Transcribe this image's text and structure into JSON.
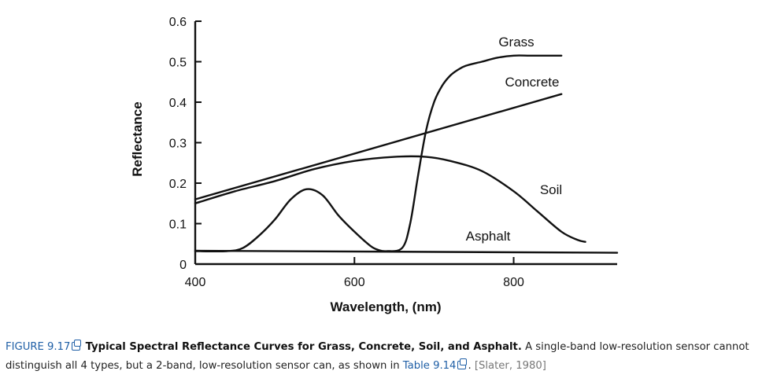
{
  "chart_data": {
    "type": "line",
    "xlabel": "Wavelength, (nm)",
    "ylabel": "Reflectance",
    "xlim": [
      400,
      930
    ],
    "ylim": [
      0,
      0.6
    ],
    "x_ticks": [
      400,
      600,
      800
    ],
    "y_ticks": [
      0,
      0.1,
      0.2,
      0.3,
      0.4,
      0.5,
      0.6
    ],
    "y_tick_labels": [
      "0",
      "0.1",
      "0.2",
      "0.3",
      "0.4",
      "0.5",
      "0.6"
    ],
    "x_tick_labels": [
      "400",
      "600",
      "800"
    ],
    "grid": false,
    "legend": "none (curves labeled directly)",
    "series": [
      {
        "name": "Grass",
        "x": [
          400,
          440,
          460,
          480,
          500,
          520,
          540,
          560,
          580,
          600,
          620,
          630,
          640,
          660,
          670,
          680,
          690,
          700,
          710,
          720,
          730,
          740,
          760,
          780,
          800,
          820,
          840,
          860
        ],
        "y": [
          0.032,
          0.032,
          0.04,
          0.07,
          0.11,
          0.16,
          0.185,
          0.17,
          0.12,
          0.08,
          0.045,
          0.035,
          0.032,
          0.04,
          0.1,
          0.22,
          0.33,
          0.4,
          0.44,
          0.465,
          0.48,
          0.49,
          0.5,
          0.51,
          0.515,
          0.515,
          0.515,
          0.515
        ]
      },
      {
        "name": "Concrete",
        "x": [
          400,
          860
        ],
        "y": [
          0.16,
          0.42
        ]
      },
      {
        "name": "Soil",
        "x": [
          400,
          450,
          500,
          550,
          600,
          650,
          690,
          720,
          760,
          800,
          830,
          860,
          880,
          890
        ],
        "y": [
          0.15,
          0.18,
          0.205,
          0.235,
          0.255,
          0.265,
          0.265,
          0.255,
          0.23,
          0.18,
          0.13,
          0.08,
          0.06,
          0.055
        ]
      },
      {
        "name": "Asphalt",
        "x": [
          400,
          930
        ],
        "y": [
          0.033,
          0.028
        ]
      }
    ]
  },
  "caption": {
    "figure_label": "FIGURE 9.17",
    "title": "Typical Spectral Reflectance Curves for Grass, Concrete, Soil, and Asphalt.",
    "text_before_link": "A single-band low-resolution sensor cannot distinguish all 4 types, but a 2-band, low-resolution sensor can, as shown in",
    "link_text": "Table 9.14",
    "period": ".",
    "citation": "[Slater, 1980]"
  },
  "icons": {
    "external_link": "external-link-icon"
  }
}
